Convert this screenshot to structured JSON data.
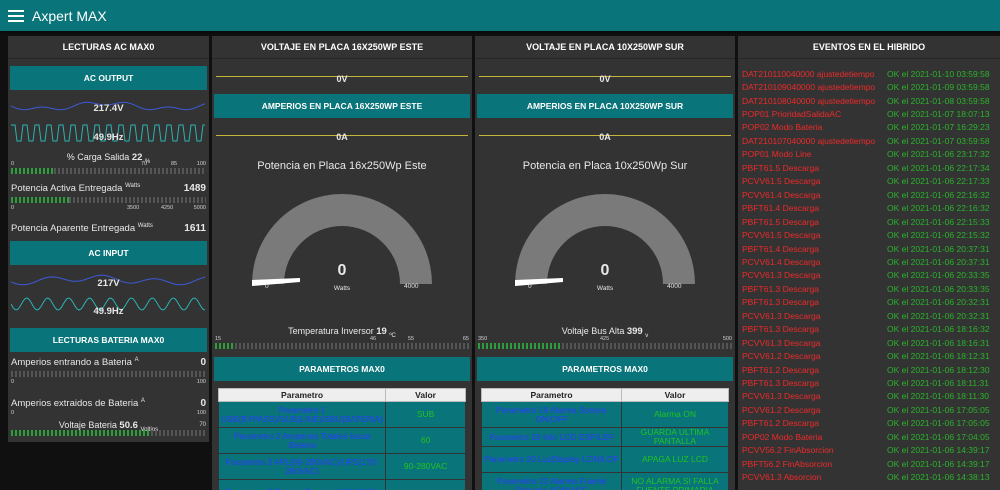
{
  "app": {
    "title": "Axpert MAX"
  },
  "lecturas": {
    "title": "LECTURAS AC MAX0",
    "ac_output": {
      "title": "AC OUTPUT",
      "voltage": "217.4V",
      "freq": "49.9Hz",
      "carga_label": "% Carga Salida",
      "carga_value": "22",
      "carga_unit": "%",
      "carga_scale": [
        "0",
        "70",
        "85",
        "100"
      ],
      "carga_fraction": 0.22,
      "activa_label": "Potencia Activa Entregada",
      "activa_unit": "Watts",
      "activa_value": "1489",
      "activa_scale": [
        "0",
        "3500",
        "4250",
        "5000"
      ],
      "activa_fraction": 0.298,
      "aparente_label": "Potencia Aparente Entregada",
      "aparente_unit": "Watts",
      "aparente_value": "1611"
    },
    "ac_input": {
      "title": "AC INPUT",
      "voltage": "217V",
      "freq": "49.9Hz"
    }
  },
  "bateria": {
    "title": "LECTURAS BATERIA MAX0",
    "entrando_label": "Amperios entrando a Bateria",
    "entrando_unit": "A",
    "entrando_value": "0",
    "scale1": [
      "0",
      "100"
    ],
    "extraidos_label": "Amperios extraidos de Bateria",
    "extraidos_unit": "A",
    "extraidos_value": "0",
    "scale2": [
      "0",
      "100"
    ],
    "voltaje_label": "Voltaje Bateria",
    "voltaje_value": "50.6",
    "voltaje_unit": "Voltios",
    "voltaje_scale_max": "70",
    "voltaje_fraction": 0.72
  },
  "este": {
    "voltaje_title": "VOLTAJE EN PLACA 16X250WP ESTE",
    "voltaje_value": "0V",
    "amperios_title": "AMPERIOS EN PLACA 16X250WP ESTE",
    "amperios_value": "0A",
    "gauge_title": "Potencia en Placa 16x250Wp Este",
    "gauge_value": "0",
    "gauge_unit": "Watts",
    "gauge_min": "0",
    "gauge_max": "4000",
    "temp_label": "Temperatura Inversor",
    "temp_value": "19",
    "temp_unit": "ºC",
    "temp_scale": [
      "15",
      "46",
      "55",
      "65"
    ],
    "temp_fraction": 0.08
  },
  "sur": {
    "voltaje_title": "VOLTAJE EN PLACA 10X250WP SUR",
    "voltaje_value": "0V",
    "amperios_title": "AMPERIOS EN PLACA 10X250WP SUR",
    "amperios_value": "0A",
    "gauge_title": "Potencia en Placa 10x250Wp Sur",
    "gauge_value": "0",
    "gauge_unit": "Watts",
    "gauge_min": "0",
    "gauge_max": "4000",
    "bus_label": "Voltaje Bus Alta",
    "bus_value": "399",
    "bus_unit": "v",
    "bus_scale": [
      "350",
      "425",
      "500"
    ],
    "bus_fraction": 0.33
  },
  "parametros": {
    "title": "PARAMETROS MAX0",
    "col_param": "Parametro",
    "col_valor": "Valor",
    "left_rows": [
      {
        "p": "Parametro 1 USB(BYPASS)/SUB(LINE)/SBU(BATERIA)",
        "v": "SUB"
      },
      {
        "p": "Parametro 2 Amperios Totales hacia Bateria",
        "v": "60"
      },
      {
        "p": "Parametro 3 APL(90-280VAC)/UPS(170-280VAC)",
        "v": "90-280VAC"
      },
      {
        "p": "Parametro 5 Tipo de Bateria (AGM/FLD)",
        "v": ""
      }
    ],
    "right_rows": [
      {
        "p": "Parametro 18 Alarma Sonora ON/OFF",
        "v": "Alarma ON"
      },
      {
        "p": "Parametro 19 Info LCD ESP/LEF",
        "v": "GUARDA ULTIMA PANTALLA"
      },
      {
        "p": "Parametro 20 LuzDisplay LON/LOF",
        "v": "APAGA LUZ LCD"
      },
      {
        "p": "Parametro 22 Alarma Fuente Primaria AON/AOF",
        "v": "NO ALARMA SI FALLA FUENTE PRIMARIA"
      }
    ]
  },
  "eventos": {
    "title": "EVENTOS EN EL HIBRIDO",
    "rows": [
      {
        "n": "DAT210110040000 ajustedetiempo",
        "t": "OK el 2021-01-10 03:59:58"
      },
      {
        "n": "DAT210109040000 ajustedetiempo",
        "t": "OK el 2021-01-09 03:59:58"
      },
      {
        "n": "DAT210108040000 ajustedetiempo",
        "t": "OK el 2021-01-08 03:59:58"
      },
      {
        "n": "POP01 PrioridadSalidaAC",
        "t": "OK el 2021-01-07 18:07:13"
      },
      {
        "n": "POP02 Modo Bateria",
        "t": "OK el 2021-01-07 16:29:23"
      },
      {
        "n": "DAT210107040000 ajustedetiempo",
        "t": "OK el 2021-01-07 03:59:58"
      },
      {
        "n": "POP01 Modo Line",
        "t": "OK el 2021-01-06 23:17:32"
      },
      {
        "n": "PBFT61.5 Descarga",
        "t": "OK el 2021-01-06 22:17:34"
      },
      {
        "n": "PCVV61.5 Descarga",
        "t": "OK el 2021-01-06 22:17:33"
      },
      {
        "n": "PCVV61.4 Descarga",
        "t": "OK el 2021-01-06 22:16:32"
      },
      {
        "n": "PBFT61.4 Descarga",
        "t": "OK el 2021-01-06 22:16:32"
      },
      {
        "n": "PBFT61.5 Descarga",
        "t": "OK el 2021-01-06 22:15:33"
      },
      {
        "n": "PCVV61.5 Descarga",
        "t": "OK el 2021-01-06 22:15:32"
      },
      {
        "n": "PBFT61.4 Descarga",
        "t": "OK el 2021-01-06 20:37:31"
      },
      {
        "n": "PCVV61.4 Descarga",
        "t": "OK el 2021-01-06 20:37:31"
      },
      {
        "n": "PCVV61.3 Descarga",
        "t": "OK el 2021-01-06 20:33:35"
      },
      {
        "n": "PBFT61.3 Descarga",
        "t": "OK el 2021-01-06 20:33:35"
      },
      {
        "n": "PBFT61.3 Descarga",
        "t": "OK el 2021-01-06 20:32:31"
      },
      {
        "n": "PCVV61.3 Descarga",
        "t": "OK el 2021-01-06 20:32:31"
      },
      {
        "n": "PBFT61.3 Descarga",
        "t": "OK el 2021-01-06 18:16:32"
      },
      {
        "n": "PCVV61.3 Descarga",
        "t": "OK el 2021-01-06 18:16:31"
      },
      {
        "n": "PCVV61.2 Descarga",
        "t": "OK el 2021-01-06 18:12:31"
      },
      {
        "n": "PBFT61.2 Descarga",
        "t": "OK el 2021-01-06 18:12:30"
      },
      {
        "n": "PBFT61.3 Descarga",
        "t": "OK el 2021-01-06 18:11:31"
      },
      {
        "n": "PCVV61.3 Descarga",
        "t": "OK el 2021-01-06 18:11:30"
      },
      {
        "n": "PCVV61.2 Descarga",
        "t": "OK el 2021-01-06 17:05:05"
      },
      {
        "n": "PBFT61.2 Descarga",
        "t": "OK el 2021-01-06 17:05:05"
      },
      {
        "n": "POP02 Modo Bateria",
        "t": "OK el 2021-01-06 17:04:05"
      },
      {
        "n": "PCVV56.2 FinAbsorcion",
        "t": "OK el 2021-01-06 14:39:17"
      },
      {
        "n": "PBFT56.2 FinAbsorcion",
        "t": "OK el 2021-01-06 14:39:17"
      },
      {
        "n": "PCVV61.3 Absorcion",
        "t": "OK el 2021-01-06 14:38:13"
      }
    ]
  }
}
